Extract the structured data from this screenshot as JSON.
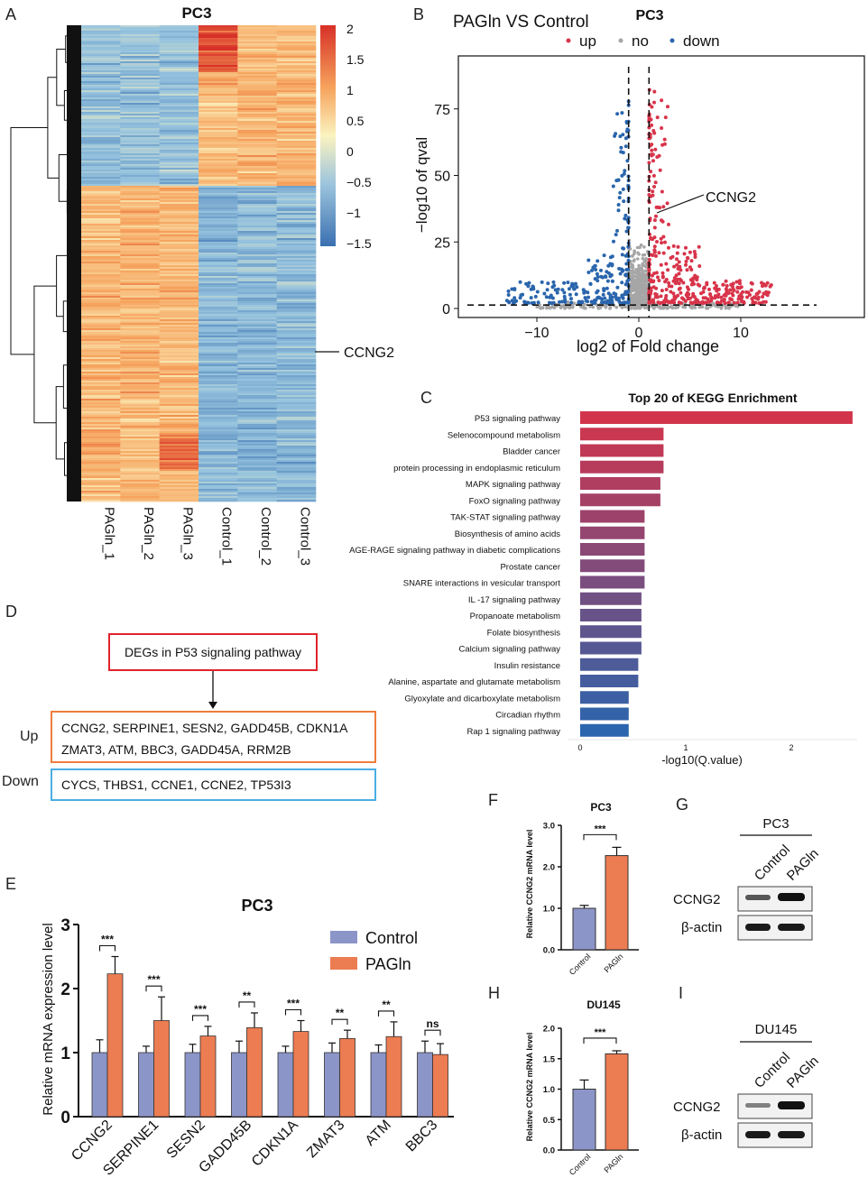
{
  "panels": [
    "A",
    "B",
    "C",
    "D",
    "E",
    "F",
    "G",
    "H",
    "I"
  ],
  "colors": {
    "control": "#8c95c8",
    "pagln": "#ec7c52",
    "up": "#d8344a",
    "down": "#2a65ad",
    "no": "#a6a6a6",
    "heat_low": "#3a70b0",
    "heat_mid": "#fbf3c0",
    "heat_high": "#d73027",
    "box_red": "#e0232b",
    "box_orange": "#ef7d3c",
    "box_blue": "#4aaee3"
  },
  "heatmap": {
    "title": "PC3",
    "columns": [
      "PAGln_1",
      "PAGln_2",
      "PAGln_3",
      "Control_1",
      "Control_2",
      "Control_3"
    ],
    "colorbar_ticks": [
      "2",
      "1.5",
      "1",
      "0.5",
      "0",
      "−0.5",
      "−1",
      "−1.5"
    ],
    "annotation": "CCNG2"
  },
  "volcano": {
    "title": "PC3",
    "subtitle": "PAGln VS Control",
    "legend": [
      {
        "label": "up",
        "key": "up"
      },
      {
        "label": "no",
        "key": "no"
      },
      {
        "label": "down",
        "key": "down"
      }
    ],
    "xlabel": "log2 of Fold change",
    "ylabel": "−log10 of qval",
    "xticks": [
      "−10",
      "0",
      "10"
    ],
    "yticks": [
      "75",
      "50",
      "25",
      "0"
    ],
    "annotation": "CCNG2"
  },
  "diagram": {
    "top": "DEGs in P53 signaling pathway",
    "up_label": "Up",
    "up_line1": "CCNG2, SERPINE1, SESN2, GADD45B, CDKN1A",
    "up_line2": "ZMAT3, ATM, BBC3, GADD45A, RRM2B",
    "down_label": "Down",
    "down_line": "CYCS, THBS1, CCNE1, CCNE2, TP53I3"
  },
  "western_g": {
    "cell": "PC3",
    "lanes": [
      "Control",
      "PAGln"
    ],
    "rows": [
      "CCNG2",
      "β-actin"
    ]
  },
  "western_i": {
    "cell": "DU145",
    "lanes": [
      "Control",
      "PAGln"
    ],
    "rows": [
      "CCNG2",
      "β-actin"
    ]
  },
  "chart_data": [
    {
      "type": "bar",
      "orientation": "horizontal",
      "title": "Top 20 of KEGG Enrichment",
      "xlabel": "-log10(Q.value)",
      "xlim": [
        0,
        2.6
      ],
      "xticks": [
        "0",
        "1",
        "2"
      ],
      "categories": [
        "P53 signaling pathway",
        "Selenocompound metabolism",
        "Bladder cancer",
        "protein processing in endoplasmic reticulum",
        "MAPK signaling pathway",
        "FoxO signaling pathway",
        "TAK-STAT signaling pathway",
        "Biosynthesis of amino acids",
        "AGE-RAGE signaling pathway in diabetic complications",
        "Prostate cancer",
        "SNARE interactions in vesicular transport",
        "IL -17 signaling pathway",
        "Propanoate metabolism",
        "Folate biosynthesis",
        "Calcium signaling pathway",
        "Insulin resistance",
        "Alanine, aspartate and glutamate metabolism",
        "Glyoxylate and dicarboxylate metabolism",
        "Circadian rhythm",
        "Rap 1 signaling pathway"
      ],
      "values": [
        2.58,
        0.79,
        0.79,
        0.79,
        0.76,
        0.76,
        0.61,
        0.61,
        0.61,
        0.61,
        0.61,
        0.58,
        0.58,
        0.58,
        0.58,
        0.55,
        0.55,
        0.46,
        0.46,
        0.46
      ]
    },
    {
      "type": "bar",
      "title": "PC3",
      "ylabel": "Relative mRNA expression level",
      "ylim": [
        0,
        3
      ],
      "yticks": [
        "0",
        "1",
        "2",
        "3"
      ],
      "categories": [
        "CCNG2",
        "SERPINE1",
        "SESN2",
        "GADD45B",
        "CDKN1A",
        "ZMAT3",
        "ATM",
        "BBC3"
      ],
      "series": [
        {
          "name": "Control",
          "values": [
            1.0,
            1.0,
            1.0,
            1.0,
            1.0,
            1.0,
            1.0,
            1.0
          ],
          "errors": [
            0.2,
            0.1,
            0.13,
            0.18,
            0.1,
            0.15,
            0.12,
            0.18
          ]
        },
        {
          "name": "PAGln",
          "values": [
            2.23,
            1.5,
            1.26,
            1.39,
            1.33,
            1.22,
            1.25,
            0.97
          ],
          "errors": [
            0.27,
            0.37,
            0.15,
            0.23,
            0.17,
            0.13,
            0.23,
            0.17
          ]
        }
      ],
      "significance": [
        "***",
        "***",
        "***",
        "**",
        "***",
        "**",
        "**",
        "ns"
      ]
    },
    {
      "type": "bar",
      "title": "PC3",
      "ylabel": "Relative CCNG2 mRNA level",
      "ylim": [
        0,
        3
      ],
      "yticks": [
        "0.0",
        "1.0",
        "2.0",
        "3.0"
      ],
      "categories": [
        "Control",
        "PAGln"
      ],
      "values": [
        1.0,
        2.27
      ],
      "errors": [
        0.07,
        0.2
      ],
      "significance": "***"
    },
    {
      "type": "bar",
      "title": "DU145",
      "ylabel": "Relative CCNG2 mRNA level",
      "ylim": [
        0,
        2
      ],
      "yticks": [
        "0.0",
        "0.5",
        "1.0",
        "1.5",
        "2.0"
      ],
      "categories": [
        "Control",
        "PAGln"
      ],
      "values": [
        1.0,
        1.58
      ],
      "errors": [
        0.15,
        0.05
      ],
      "significance": "***"
    }
  ]
}
